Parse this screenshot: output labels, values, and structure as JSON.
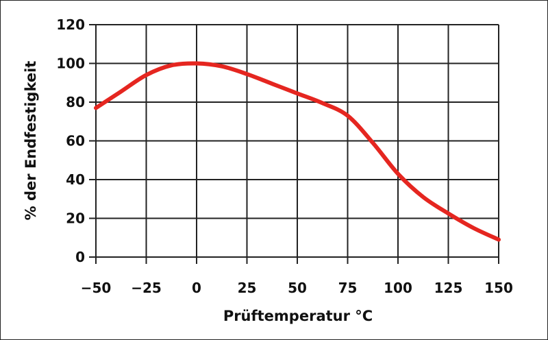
{
  "chart_data": {
    "type": "line",
    "title": "",
    "xlabel": "Prüftemperatur °C",
    "ylabel": "% der Endfestigkeit",
    "xlim": [
      -50,
      150
    ],
    "ylim": [
      0,
      120
    ],
    "x_ticks": [
      -50,
      -25,
      0,
      25,
      50,
      75,
      100,
      125,
      150
    ],
    "x_tick_labels": [
      "−50",
      "−25",
      "0",
      "25",
      "50",
      "75",
      "100",
      "125",
      "150"
    ],
    "y_ticks": [
      0,
      20,
      40,
      60,
      80,
      100,
      120
    ],
    "y_tick_labels": [
      "0",
      "20",
      "40",
      "60",
      "80",
      "100",
      "120"
    ],
    "grid": true,
    "series": [
      {
        "color": "#e52620",
        "x": [
          -50,
          -37.5,
          -25,
          -12.5,
          0,
          12.5,
          25,
          37.5,
          50,
          62.5,
          75,
          87.5,
          100,
          112.5,
          125,
          137.5,
          150
        ],
        "values": [
          77,
          85.5,
          94,
          99,
          100,
          98.5,
          94.5,
          89.5,
          84.5,
          79.5,
          73,
          59,
          43,
          31,
          22.5,
          15,
          9
        ]
      }
    ]
  }
}
